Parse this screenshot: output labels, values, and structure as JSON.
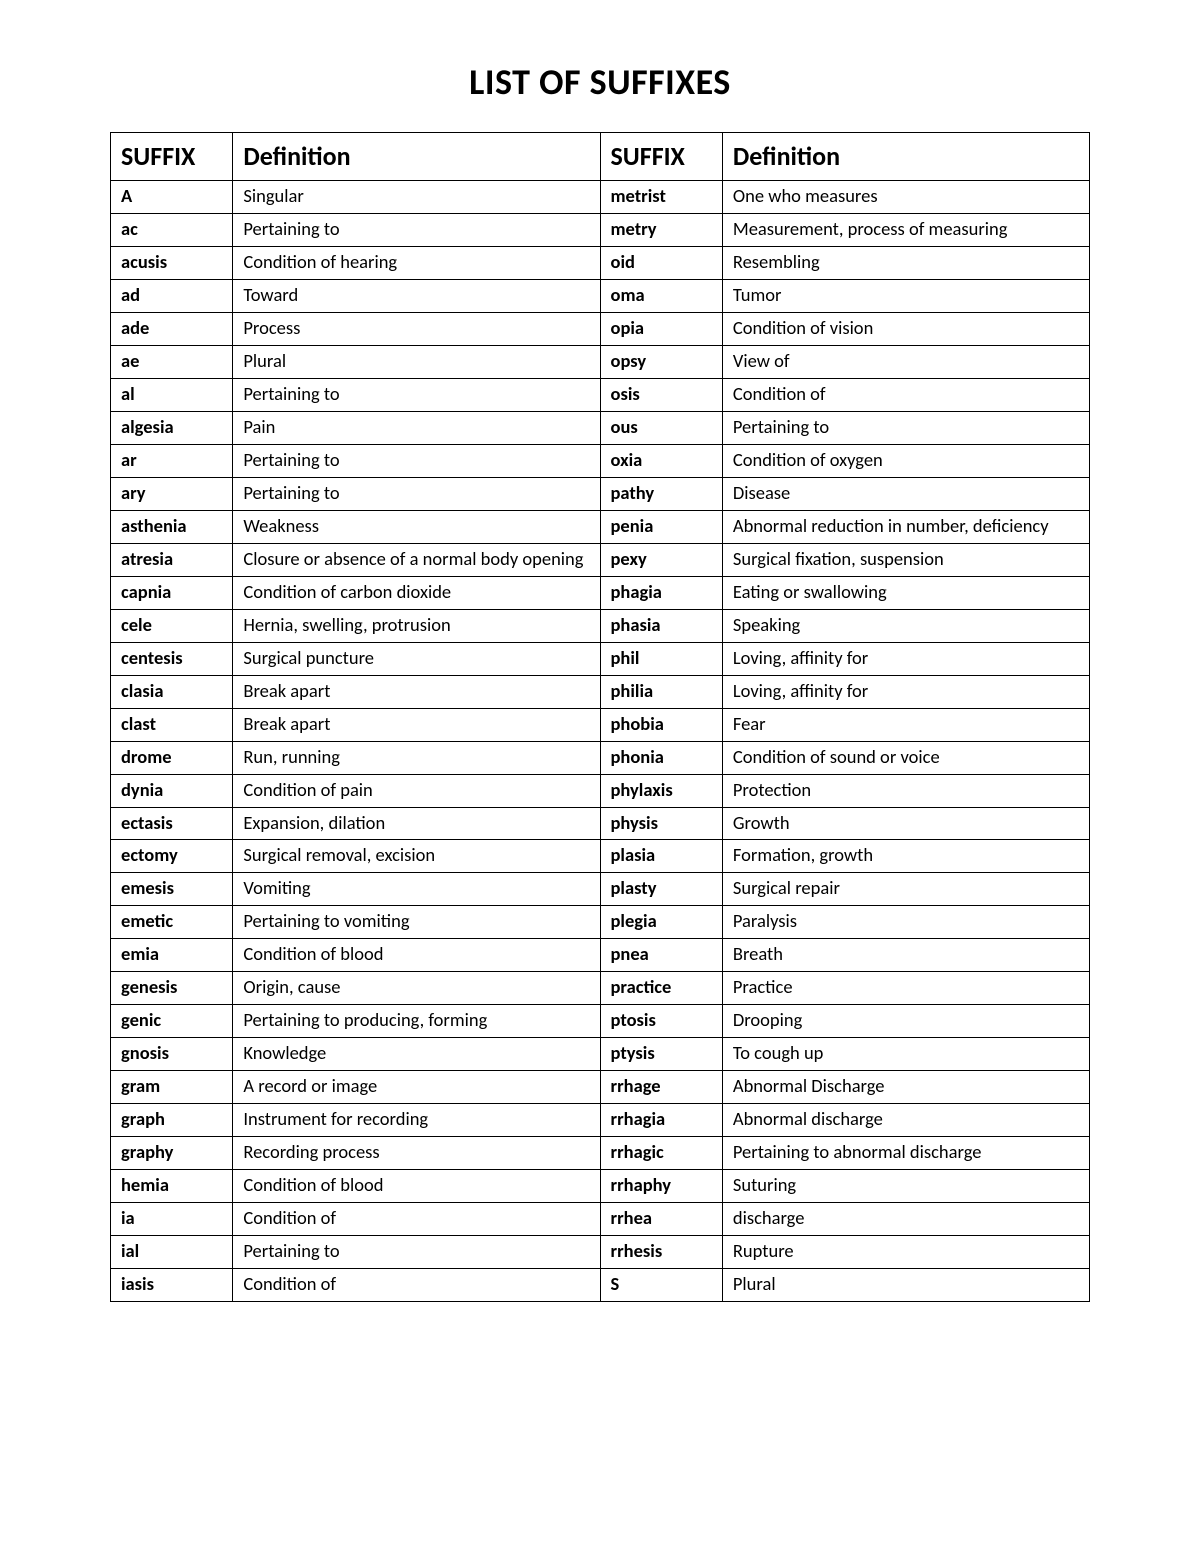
{
  "title": "LIST OF SUFFIXES",
  "table": {
    "type": "table",
    "columns": [
      "SUFFIX",
      "Definition",
      "SUFFIX",
      "Definition"
    ],
    "header_fontsize": 26,
    "body_fontsize": 18.5,
    "border_color": "#000000",
    "background_color": "#ffffff",
    "col_widths_pct": [
      12.5,
      37.5,
      12.5,
      37.5
    ],
    "rows": [
      [
        "A",
        "Singular",
        "metrist",
        "One who measures"
      ],
      [
        "ac",
        "Pertaining to",
        "metry",
        "Measurement, process of measuring"
      ],
      [
        "acusis",
        "Condition of hearing",
        "oid",
        "Resembling"
      ],
      [
        "ad",
        "Toward",
        "oma",
        "Tumor"
      ],
      [
        "ade",
        "Process",
        "opia",
        "Condition of vision"
      ],
      [
        "ae",
        "Plural",
        "opsy",
        "View of"
      ],
      [
        "al",
        "Pertaining to",
        "osis",
        "Condition of"
      ],
      [
        "algesia",
        "Pain",
        "ous",
        "Pertaining to"
      ],
      [
        "ar",
        "Pertaining to",
        "oxia",
        "Condition of oxygen"
      ],
      [
        "ary",
        "Pertaining to",
        "pathy",
        "Disease"
      ],
      [
        "asthenia",
        "Weakness",
        "penia",
        "Abnormal reduction in number, deficiency"
      ],
      [
        "atresia",
        "Closure or absence of a normal body opening",
        "pexy",
        "Surgical fixation, suspension"
      ],
      [
        "capnia",
        "Condition of carbon dioxide",
        "phagia",
        "Eating or swallowing"
      ],
      [
        "cele",
        "Hernia, swelling, protrusion",
        "phasia",
        "Speaking"
      ],
      [
        "centesis",
        "Surgical puncture",
        "phil",
        "Loving, affinity for"
      ],
      [
        "clasia",
        "Break apart",
        "philia",
        "Loving, affinity for"
      ],
      [
        "clast",
        "Break apart",
        "phobia",
        "Fear"
      ],
      [
        "drome",
        "Run, running",
        "phonia",
        "Condition of sound or voice"
      ],
      [
        "dynia",
        "Condition of pain",
        "phylaxis",
        "Protection"
      ],
      [
        "ectasis",
        "Expansion, dilation",
        "physis",
        "Growth"
      ],
      [
        "ectomy",
        "Surgical removal, excision",
        "plasia",
        "Formation, growth"
      ],
      [
        "emesis",
        "Vomiting",
        "plasty",
        "Surgical repair"
      ],
      [
        "emetic",
        "Pertaining to vomiting",
        "plegia",
        "Paralysis"
      ],
      [
        "emia",
        "Condition of blood",
        "pnea",
        "Breath"
      ],
      [
        "genesis",
        "Origin, cause",
        "practice",
        "Practice"
      ],
      [
        "genic",
        "Pertaining to producing, forming",
        "ptosis",
        "Drooping"
      ],
      [
        "gnosis",
        "Knowledge",
        "ptysis",
        "To cough up"
      ],
      [
        "gram",
        "A record or image",
        "rrhage",
        "Abnormal Discharge"
      ],
      [
        "graph",
        "Instrument for recording",
        "rrhagia",
        "Abnormal discharge"
      ],
      [
        "graphy",
        "Recording process",
        "rrhagic",
        "Pertaining to abnormal discharge"
      ],
      [
        "hemia",
        "Condition of blood",
        "rrhaphy",
        "Suturing"
      ],
      [
        "ia",
        "Condition of",
        "rrhea",
        "discharge"
      ],
      [
        "ial",
        "Pertaining to",
        "rrhesis",
        "Rupture"
      ],
      [
        "iasis",
        "Condition of",
        "S",
        "Plural"
      ]
    ]
  }
}
